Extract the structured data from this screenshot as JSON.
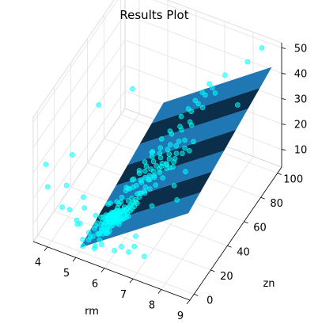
{
  "chart_data": {
    "type": "scatter",
    "subtype": "3d-scatter-with-regression-plane",
    "title": "Results Plot",
    "xlabel": "rm",
    "ylabel": "zn",
    "zlabel": "",
    "xlim": [
      3.5,
      9.0
    ],
    "ylim": [
      -5,
      105
    ],
    "zlim": [
      3,
      52
    ],
    "xticks": [
      "4",
      "5",
      "6",
      "7",
      "8",
      "9"
    ],
    "yticks": [
      "0",
      "20",
      "40",
      "60",
      "80",
      "100"
    ],
    "zticks": [
      "10",
      "20",
      "30",
      "40",
      "50"
    ],
    "grid": true,
    "colors": {
      "points": "#00ffff",
      "plane_light": "#1f77b4",
      "plane_dark": "#0b2f4a",
      "pane_back": "#f2f2f2",
      "pane_side": "#ebebeb",
      "pane_floor": "#f6f6f6"
    },
    "plane": {
      "x_range": [
        5.0,
        8.8
      ],
      "y_range": [
        0,
        100
      ],
      "z_at_corners": [
        [
          5.0,
          0,
          4.5
        ],
        [
          8.8,
          0,
          34.0
        ],
        [
          5.0,
          100,
          14.0
        ],
        [
          8.8,
          100,
          44.0
        ]
      ],
      "stripes": 7
    },
    "points": [
      [
        3.56,
        8,
        27.5
      ],
      [
        3.86,
        0,
        23.7
      ],
      [
        4.14,
        20,
        27.9
      ],
      [
        4.37,
        0,
        17.8
      ],
      [
        4.52,
        0,
        27.0
      ],
      [
        4.63,
        0,
        17.9
      ],
      [
        4.88,
        0,
        14.8
      ],
      [
        4.9,
        0,
        13.3
      ],
      [
        4.97,
        5,
        21.9
      ],
      [
        5.0,
        0,
        14.0
      ],
      [
        5.09,
        0,
        8.1
      ],
      [
        5.15,
        0,
        20.8
      ],
      [
        5.25,
        10,
        13.5
      ],
      [
        5.3,
        0,
        8.8
      ],
      [
        5.36,
        0,
        10.2
      ],
      [
        5.4,
        20,
        13.8
      ],
      [
        5.45,
        0,
        10.9
      ],
      [
        5.5,
        0,
        14.2
      ],
      [
        5.53,
        0,
        7.4
      ],
      [
        5.56,
        0,
        15.6
      ],
      [
        5.6,
        0,
        16.7
      ],
      [
        5.62,
        0,
        12.7
      ],
      [
        5.65,
        0,
        12.5
      ],
      [
        5.68,
        0,
        10.4
      ],
      [
        5.7,
        0,
        13.1
      ],
      [
        5.71,
        12,
        19.3
      ],
      [
        5.73,
        0,
        19.6
      ],
      [
        5.75,
        0,
        15.2
      ],
      [
        5.76,
        0,
        14.5
      ],
      [
        5.78,
        0,
        18.2
      ],
      [
        5.8,
        0,
        13.3
      ],
      [
        5.82,
        0,
        20.0
      ],
      [
        5.84,
        0,
        16.8
      ],
      [
        5.85,
        0,
        15.0
      ],
      [
        5.87,
        0,
        17.8
      ],
      [
        5.88,
        0,
        19.4
      ],
      [
        5.89,
        25,
        20.1
      ],
      [
        5.9,
        0,
        13.9
      ],
      [
        5.91,
        0,
        21.2
      ],
      [
        5.92,
        0,
        14.9
      ],
      [
        5.93,
        0,
        18.4
      ],
      [
        5.94,
        0,
        16.1
      ],
      [
        5.95,
        0,
        19.9
      ],
      [
        5.96,
        0,
        21.0
      ],
      [
        5.97,
        0,
        14.3
      ],
      [
        5.98,
        0,
        17.1
      ],
      [
        5.99,
        0,
        20.6
      ],
      [
        6.0,
        0,
        18.7
      ],
      [
        6.01,
        12,
        20.3
      ],
      [
        6.02,
        0,
        21.5
      ],
      [
        6.03,
        0,
        15.4
      ],
      [
        6.04,
        0,
        19.1
      ],
      [
        6.05,
        0,
        22.0
      ],
      [
        6.06,
        0,
        17.3
      ],
      [
        6.07,
        0,
        20.8
      ],
      [
        6.08,
        0,
        22.2
      ],
      [
        6.09,
        0,
        18.9
      ],
      [
        6.1,
        0,
        21.7
      ],
      [
        6.11,
        0,
        19.6
      ],
      [
        6.12,
        0,
        23.1
      ],
      [
        6.13,
        0,
        20.2
      ],
      [
        6.14,
        0,
        18.0
      ],
      [
        6.15,
        0,
        21.9
      ],
      [
        6.16,
        0,
        22.6
      ],
      [
        6.17,
        0,
        19.3
      ],
      [
        6.18,
        0,
        20.5
      ],
      [
        6.19,
        0,
        23.4
      ],
      [
        6.2,
        0,
        21.1
      ],
      [
        6.21,
        0,
        22.8
      ],
      [
        6.22,
        0,
        19.8
      ],
      [
        6.23,
        0,
        21.4
      ],
      [
        6.24,
        0,
        23.9
      ],
      [
        6.25,
        0,
        20.4
      ],
      [
        6.26,
        0,
        22.1
      ],
      [
        6.27,
        0,
        24.4
      ],
      [
        6.28,
        0,
        21.6
      ],
      [
        6.29,
        0,
        19.7
      ],
      [
        6.3,
        0,
        23.3
      ],
      [
        6.31,
        0,
        22.4
      ],
      [
        6.32,
        0,
        20.9
      ],
      [
        6.33,
        0,
        24.7
      ],
      [
        6.34,
        0,
        23.0
      ],
      [
        6.35,
        0,
        21.3
      ],
      [
        6.36,
        0,
        19.4
      ],
      [
        6.37,
        0,
        24.1
      ],
      [
        6.38,
        0,
        22.7
      ],
      [
        6.39,
        0,
        20.6
      ],
      [
        6.4,
        0,
        25.0
      ],
      [
        6.42,
        0,
        23.6
      ],
      [
        6.44,
        0,
        22.0
      ],
      [
        6.46,
        0,
        24.8
      ],
      [
        6.48,
        0,
        21.8
      ],
      [
        6.5,
        0,
        25.3
      ],
      [
        6.52,
        0,
        23.8
      ],
      [
        6.54,
        0,
        22.5
      ],
      [
        6.56,
        0,
        26.0
      ],
      [
        6.58,
        0,
        24.3
      ],
      [
        6.6,
        0,
        25.7
      ],
      [
        6.62,
        0,
        23.2
      ],
      [
        6.64,
        0,
        26.6
      ],
      [
        6.66,
        0,
        25.1
      ],
      [
        6.68,
        0,
        27.2
      ],
      [
        6.7,
        0,
        24.0
      ],
      [
        6.73,
        0,
        28.1
      ],
      [
        6.76,
        0,
        26.4
      ],
      [
        6.79,
        0,
        29.0
      ],
      [
        6.82,
        0,
        27.5
      ],
      [
        6.86,
        0,
        30.1
      ],
      [
        6.9,
        0,
        28.7
      ],
      [
        6.95,
        0,
        31.6
      ],
      [
        7.0,
        0,
        30.4
      ],
      [
        7.08,
        0,
        33.2
      ],
      [
        7.15,
        0,
        35.0
      ],
      [
        7.25,
        0,
        36.2
      ],
      [
        7.4,
        0,
        41.3
      ],
      [
        7.6,
        0,
        43.8
      ],
      [
        7.85,
        0,
        48.5
      ],
      [
        8.04,
        0,
        50.0
      ],
      [
        8.26,
        0,
        50.0
      ],
      [
        8.3,
        0,
        42.8
      ],
      [
        8.4,
        0,
        37.6
      ],
      [
        8.7,
        0,
        50.0
      ],
      [
        7.52,
        0,
        31.5
      ],
      [
        5.4,
        12,
        9.7
      ],
      [
        5.62,
        12,
        12.0
      ],
      [
        5.8,
        12,
        15.6
      ],
      [
        5.96,
        12,
        18.6
      ],
      [
        6.08,
        12,
        21.3
      ],
      [
        6.2,
        12,
        19.8
      ],
      [
        6.34,
        12,
        22.9
      ],
      [
        6.46,
        12,
        24.3
      ],
      [
        6.6,
        12,
        23.5
      ],
      [
        6.74,
        12,
        27.6
      ],
      [
        6.92,
        12,
        28.4
      ],
      [
        7.1,
        12,
        30.8
      ],
      [
        7.3,
        12,
        33.1
      ],
      [
        7.55,
        12,
        37.0
      ],
      [
        7.8,
        12,
        42.0
      ],
      [
        5.7,
        20,
        16.0
      ],
      [
        5.88,
        20,
        18.5
      ],
      [
        6.02,
        20,
        21.7
      ],
      [
        6.15,
        20,
        23.0
      ],
      [
        6.28,
        20,
        24.2
      ],
      [
        6.42,
        20,
        22.1
      ],
      [
        6.57,
        20,
        27.3
      ],
      [
        6.71,
        20,
        26.0
      ],
      [
        6.86,
        20,
        29.6
      ],
      [
        7.02,
        20,
        31.2
      ],
      [
        7.2,
        20,
        33.9
      ],
      [
        7.45,
        20,
        36.5
      ],
      [
        7.7,
        20,
        40.1
      ],
      [
        8.0,
        20,
        44.7
      ],
      [
        8.25,
        20,
        46.8
      ],
      [
        5.95,
        25,
        19.9
      ],
      [
        6.1,
        25,
        23.9
      ],
      [
        6.25,
        25,
        22.3
      ],
      [
        6.4,
        25,
        25.0
      ],
      [
        6.55,
        25,
        26.7
      ],
      [
        6.7,
        25,
        28.1
      ],
      [
        6.85,
        25,
        30.5
      ],
      [
        7.05,
        25,
        32.2
      ],
      [
        7.3,
        25,
        35.4
      ],
      [
        7.6,
        25,
        38.6
      ],
      [
        6.0,
        30,
        21.4
      ],
      [
        6.2,
        30,
        24.6
      ],
      [
        6.4,
        30,
        26.2
      ],
      [
        6.6,
        30,
        27.9
      ],
      [
        6.8,
        30,
        30.0
      ],
      [
        7.0,
        30,
        31.8
      ],
      [
        7.25,
        30,
        34.7
      ],
      [
        7.5,
        30,
        37.9
      ],
      [
        7.8,
        30,
        41.2
      ],
      [
        8.1,
        30,
        45.0
      ],
      [
        6.05,
        35,
        22.6
      ],
      [
        6.3,
        35,
        25.4
      ],
      [
        6.55,
        35,
        28.3
      ],
      [
        6.8,
        35,
        30.9
      ],
      [
        7.1,
        35,
        33.5
      ],
      [
        6.1,
        40,
        23.8
      ],
      [
        6.35,
        40,
        26.9
      ],
      [
        6.62,
        40,
        29.4
      ],
      [
        6.9,
        40,
        32.1
      ],
      [
        7.2,
        40,
        34.8
      ],
      [
        7.5,
        40,
        38.3
      ],
      [
        6.2,
        45,
        25.6
      ],
      [
        6.5,
        45,
        28.7
      ],
      [
        6.85,
        45,
        31.4
      ],
      [
        7.15,
        45,
        34.0
      ],
      [
        6.25,
        55,
        26.4
      ],
      [
        6.6,
        55,
        29.8
      ],
      [
        6.95,
        55,
        32.9
      ],
      [
        7.3,
        55,
        36.2
      ],
      [
        6.4,
        60,
        27.7
      ],
      [
        6.75,
        60,
        31.0
      ],
      [
        7.1,
        60,
        34.3
      ],
      [
        6.5,
        70,
        29.1
      ],
      [
        6.85,
        70,
        32.6
      ],
      [
        7.25,
        70,
        35.8
      ],
      [
        6.6,
        75,
        30.2
      ],
      [
        6.95,
        75,
        33.7
      ],
      [
        6.7,
        80,
        31.5
      ],
      [
        7.05,
        80,
        35.1
      ],
      [
        7.4,
        80,
        37.4
      ],
      [
        6.8,
        85,
        32.8
      ],
      [
        7.15,
        85,
        36.0
      ],
      [
        6.9,
        90,
        34.1
      ],
      [
        7.3,
        95,
        36.9
      ],
      [
        7.6,
        100,
        24.0
      ],
      [
        8.1,
        95,
        45.5
      ],
      [
        8.45,
        100,
        50.0
      ],
      [
        3.9,
        60,
        27.5
      ],
      [
        4.2,
        90,
        20.8
      ],
      [
        5.2,
        80,
        5.0
      ],
      [
        6.9,
        0,
        13.0
      ],
      [
        7.25,
        0,
        10.5
      ],
      [
        5.1,
        0,
        5.6
      ],
      [
        5.5,
        0,
        6.3
      ],
      [
        6.2,
        0,
        8.4
      ],
      [
        6.7,
        0,
        9.9
      ],
      [
        5.3,
        0,
        11.8
      ],
      [
        6.45,
        0,
        11.0
      ],
      [
        5.75,
        0,
        8.9
      ],
      [
        6.95,
        0,
        17.2
      ]
    ]
  }
}
